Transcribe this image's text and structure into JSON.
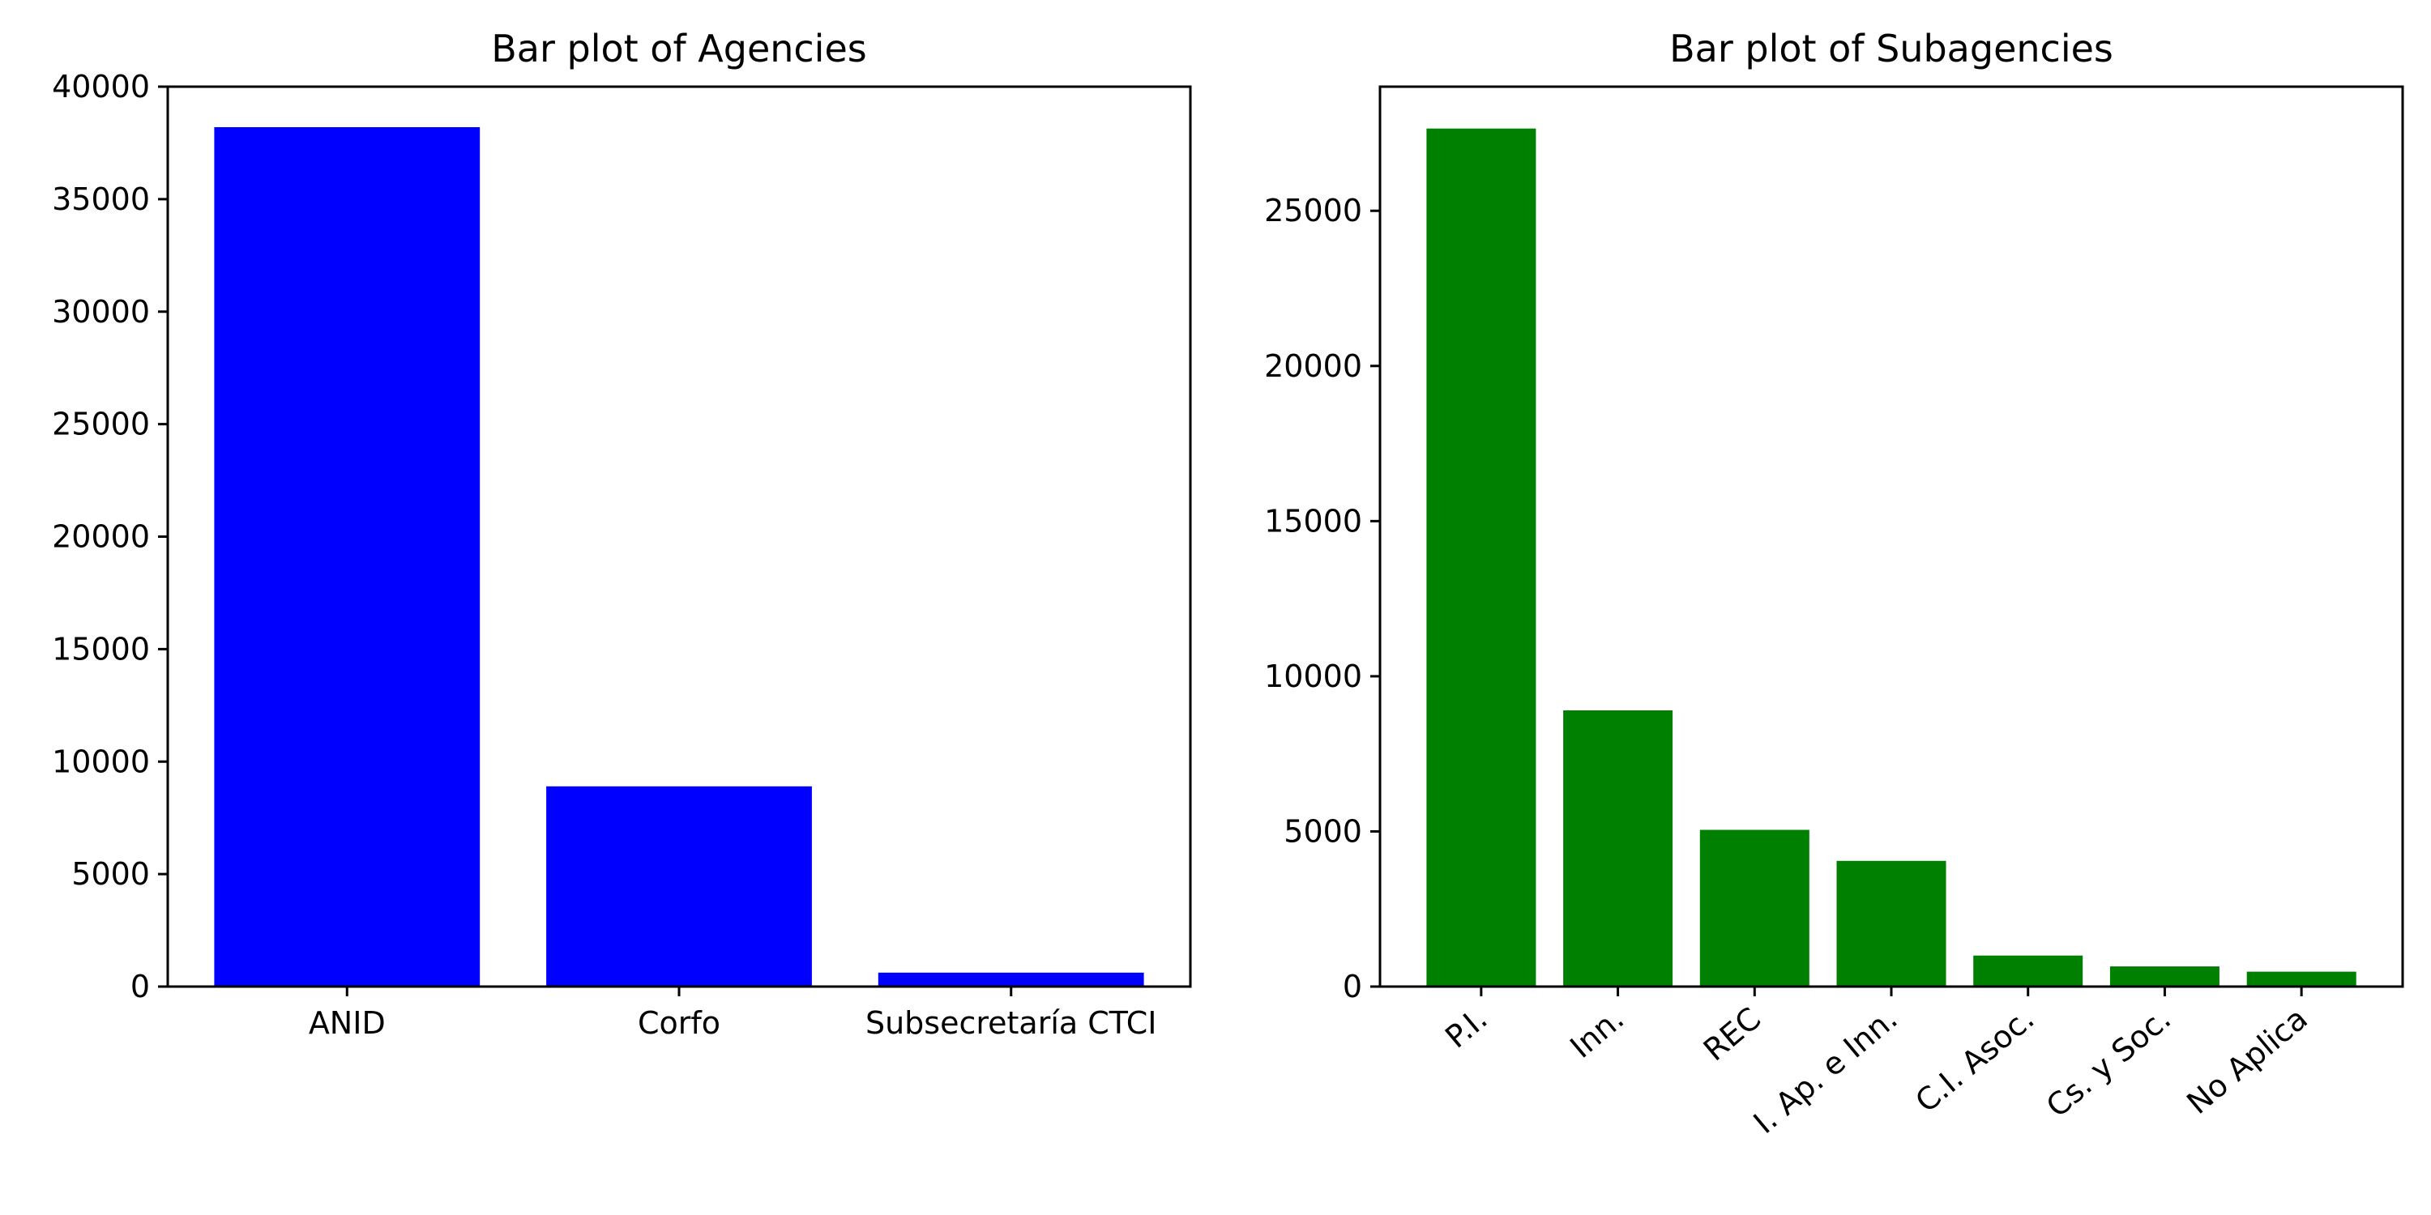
{
  "chart_data": [
    {
      "type": "bar",
      "title": "Bar plot of Agencies",
      "xlabel": "",
      "ylabel": "",
      "categories": [
        "ANID",
        "Corfo",
        "Subsecretaría CTCI"
      ],
      "values": [
        38200,
        8900,
        620
      ],
      "ylim": [
        0,
        40000
      ],
      "yticks": [
        0,
        5000,
        10000,
        15000,
        20000,
        25000,
        30000,
        35000,
        40000
      ],
      "xtick_rotation": 0,
      "color": "#0000ff",
      "grid": false,
      "legend": "none"
    },
    {
      "type": "bar",
      "title": "Bar plot of Subagencies",
      "xlabel": "",
      "ylabel": "",
      "categories": [
        "P.I.",
        "Inn.",
        "REC",
        "I. Ap. e Inn.",
        "C.I. Asoc.",
        "Cs. y Soc.",
        "No Aplica"
      ],
      "values": [
        27650,
        8900,
        5050,
        4050,
        1000,
        650,
        480
      ],
      "ylim": [
        0,
        29000
      ],
      "yticks": [
        0,
        5000,
        10000,
        15000,
        20000,
        25000
      ],
      "xtick_rotation": -40,
      "color": "#008000",
      "grid": false,
      "legend": "none"
    }
  ]
}
